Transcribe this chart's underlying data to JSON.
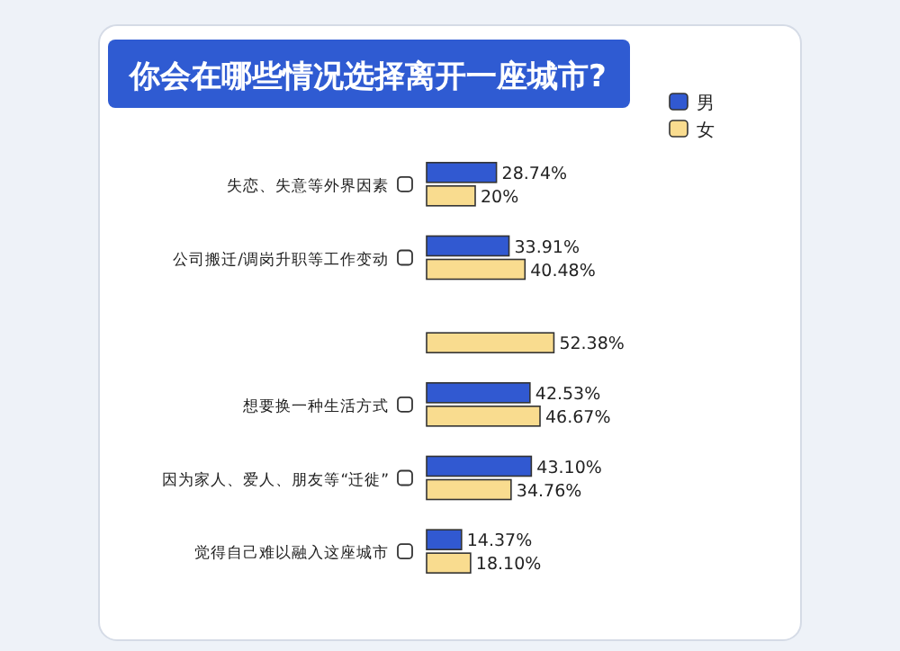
{
  "chart_data": {
    "type": "bar",
    "orientation": "horizontal",
    "title": "你会在哪些情况选择离开一座城市?",
    "legend": "top right",
    "categories": [
      "失恋、失意等外界因素",
      "公司搬迁/调岗升职等工作变动",
      null,
      "想要换一种生活方式",
      "因为家人、爱人、朋友等“迁徙”",
      "觉得自己难以融入这座城市"
    ],
    "series": [
      {
        "name": "男",
        "color": "#3159d1",
        "values": [
          28.74,
          33.91,
          null,
          42.53,
          43.1,
          14.37
        ],
        "value_labels": [
          "28.74%",
          "33.91%",
          null,
          "42.53%",
          "43.10%",
          "14.37%"
        ]
      },
      {
        "name": "女",
        "color": "#f9dc8f",
        "values": [
          20,
          40.48,
          52.38,
          46.67,
          34.76,
          18.1
        ],
        "value_labels": [
          "20%",
          "40.48%",
          "52.38%",
          "46.67%",
          "34.76%",
          "18.10%"
        ]
      }
    ]
  }
}
